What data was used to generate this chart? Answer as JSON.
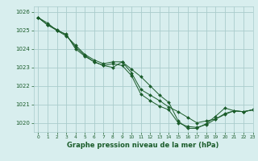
{
  "background_color": "#d8eeee",
  "grid_color": "#aacccc",
  "line_color": "#1a5c2a",
  "marker_color": "#1a5c2a",
  "xlabel": "Graphe pression niveau de la mer (hPa)",
  "ylabel": "",
  "xlim": [
    -0.5,
    23
  ],
  "ylim": [
    1019.5,
    1026.3
  ],
  "yticks": [
    1020,
    1021,
    1022,
    1023,
    1024,
    1025,
    1026
  ],
  "xticks": [
    0,
    1,
    2,
    3,
    4,
    5,
    6,
    7,
    8,
    9,
    10,
    11,
    12,
    13,
    14,
    15,
    16,
    17,
    18,
    19,
    20,
    21,
    22,
    23
  ],
  "series": [
    [
      1025.7,
      1025.4,
      1025.0,
      1024.8,
      1024.0,
      1023.6,
      1023.3,
      1023.1,
      1023.0,
      1023.3,
      1022.9,
      1022.5,
      1022.0,
      1021.5,
      1021.1,
      1020.1,
      1019.7,
      1019.7,
      1019.95,
      1020.35,
      1020.8,
      1020.65,
      1020.6,
      1020.7
    ],
    [
      1025.7,
      1025.3,
      1025.0,
      1024.7,
      1024.2,
      1023.7,
      1023.4,
      1023.2,
      1023.3,
      1023.3,
      1022.7,
      1021.8,
      1021.5,
      1021.2,
      1020.85,
      1020.6,
      1020.3,
      1020.0,
      1020.1,
      1020.2,
      1020.5,
      1020.65,
      1020.6,
      1020.7
    ],
    [
      1025.7,
      1025.3,
      1025.05,
      1024.75,
      1024.1,
      1023.65,
      1023.3,
      1023.1,
      1023.2,
      1023.1,
      1022.55,
      1021.55,
      1021.2,
      1020.9,
      1020.7,
      1020.0,
      1019.8,
      1019.75,
      1019.9,
      1020.2,
      1020.45,
      1020.65,
      1020.6,
      1020.7
    ]
  ],
  "figsize": [
    3.2,
    2.0
  ],
  "dpi": 100
}
